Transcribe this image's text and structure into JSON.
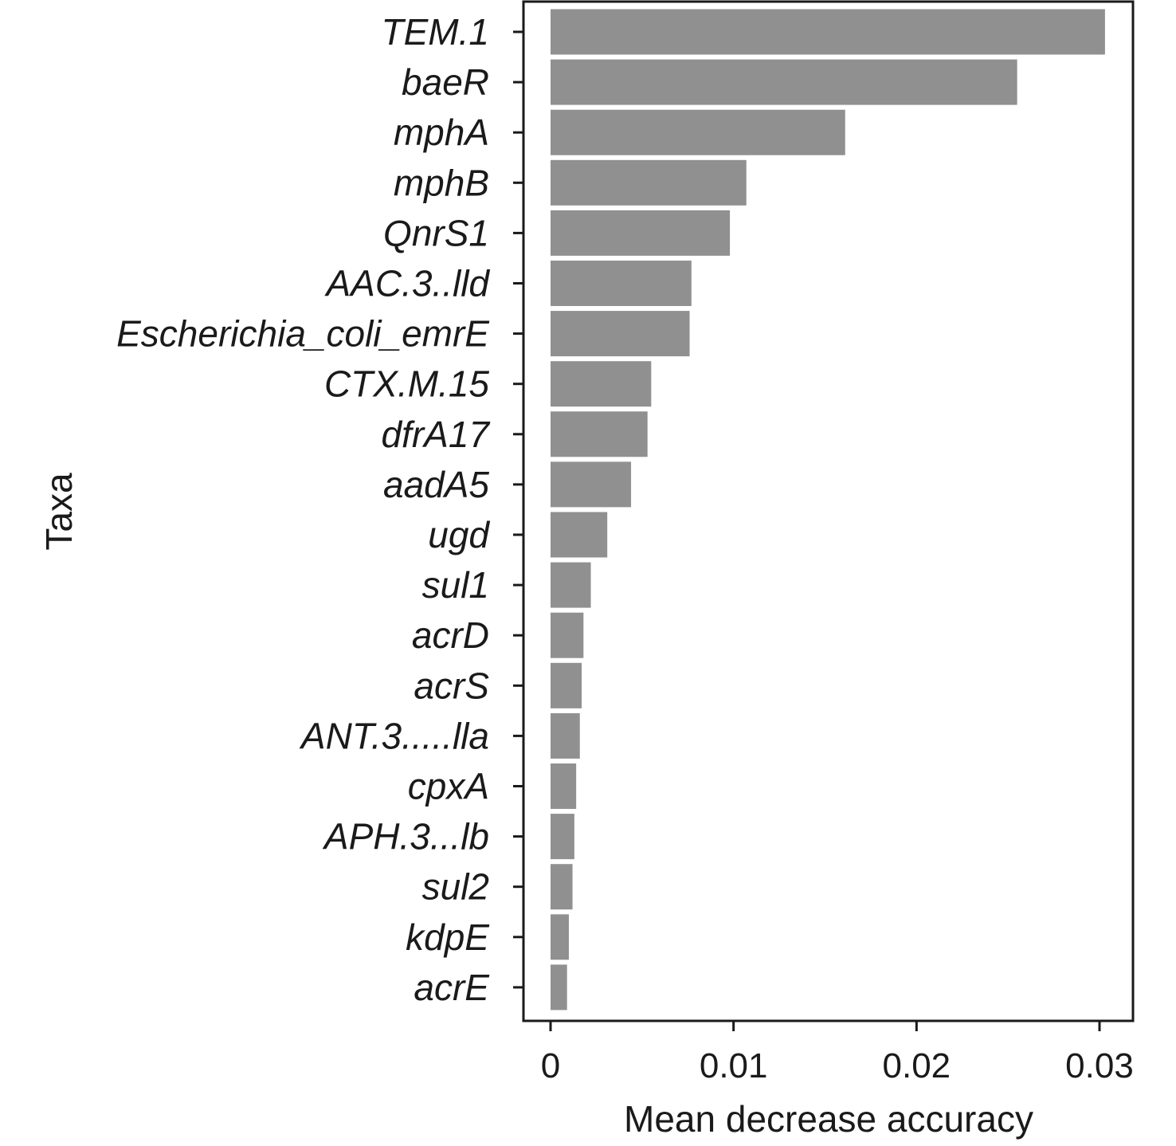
{
  "chart_data": {
    "type": "bar",
    "orientation": "horizontal",
    "categories": [
      "TEM.1",
      "baeR",
      "mphA",
      "mphB",
      "QnrS1",
      "AAC.3..lld",
      "Escherichia_coli_emrE",
      "CTX.M.15",
      "dfrA17",
      "aadA5",
      "ugd",
      "sul1",
      "acrD",
      "acrS",
      "ANT.3.....lla",
      "cpxA",
      "APH.3...lb",
      "sul2",
      "kdpE",
      "acrE"
    ],
    "values": [
      0.0303,
      0.0255,
      0.0161,
      0.0107,
      0.0098,
      0.0077,
      0.0076,
      0.0055,
      0.0053,
      0.0044,
      0.0031,
      0.0022,
      0.0018,
      0.0017,
      0.0016,
      0.0014,
      0.0013,
      0.0012,
      0.001,
      0.0009
    ],
    "xlabel": "Mean decrease accuracy",
    "ylabel": "Taxa",
    "xticks": [
      0,
      0.01,
      0.02,
      0.03
    ],
    "xtick_labels": [
      "0",
      "0.01",
      "0.02",
      "0.03"
    ],
    "xlim": [
      -0.0015,
      0.0318
    ],
    "bar_color": "#919091",
    "grid": false,
    "legend": "none"
  }
}
